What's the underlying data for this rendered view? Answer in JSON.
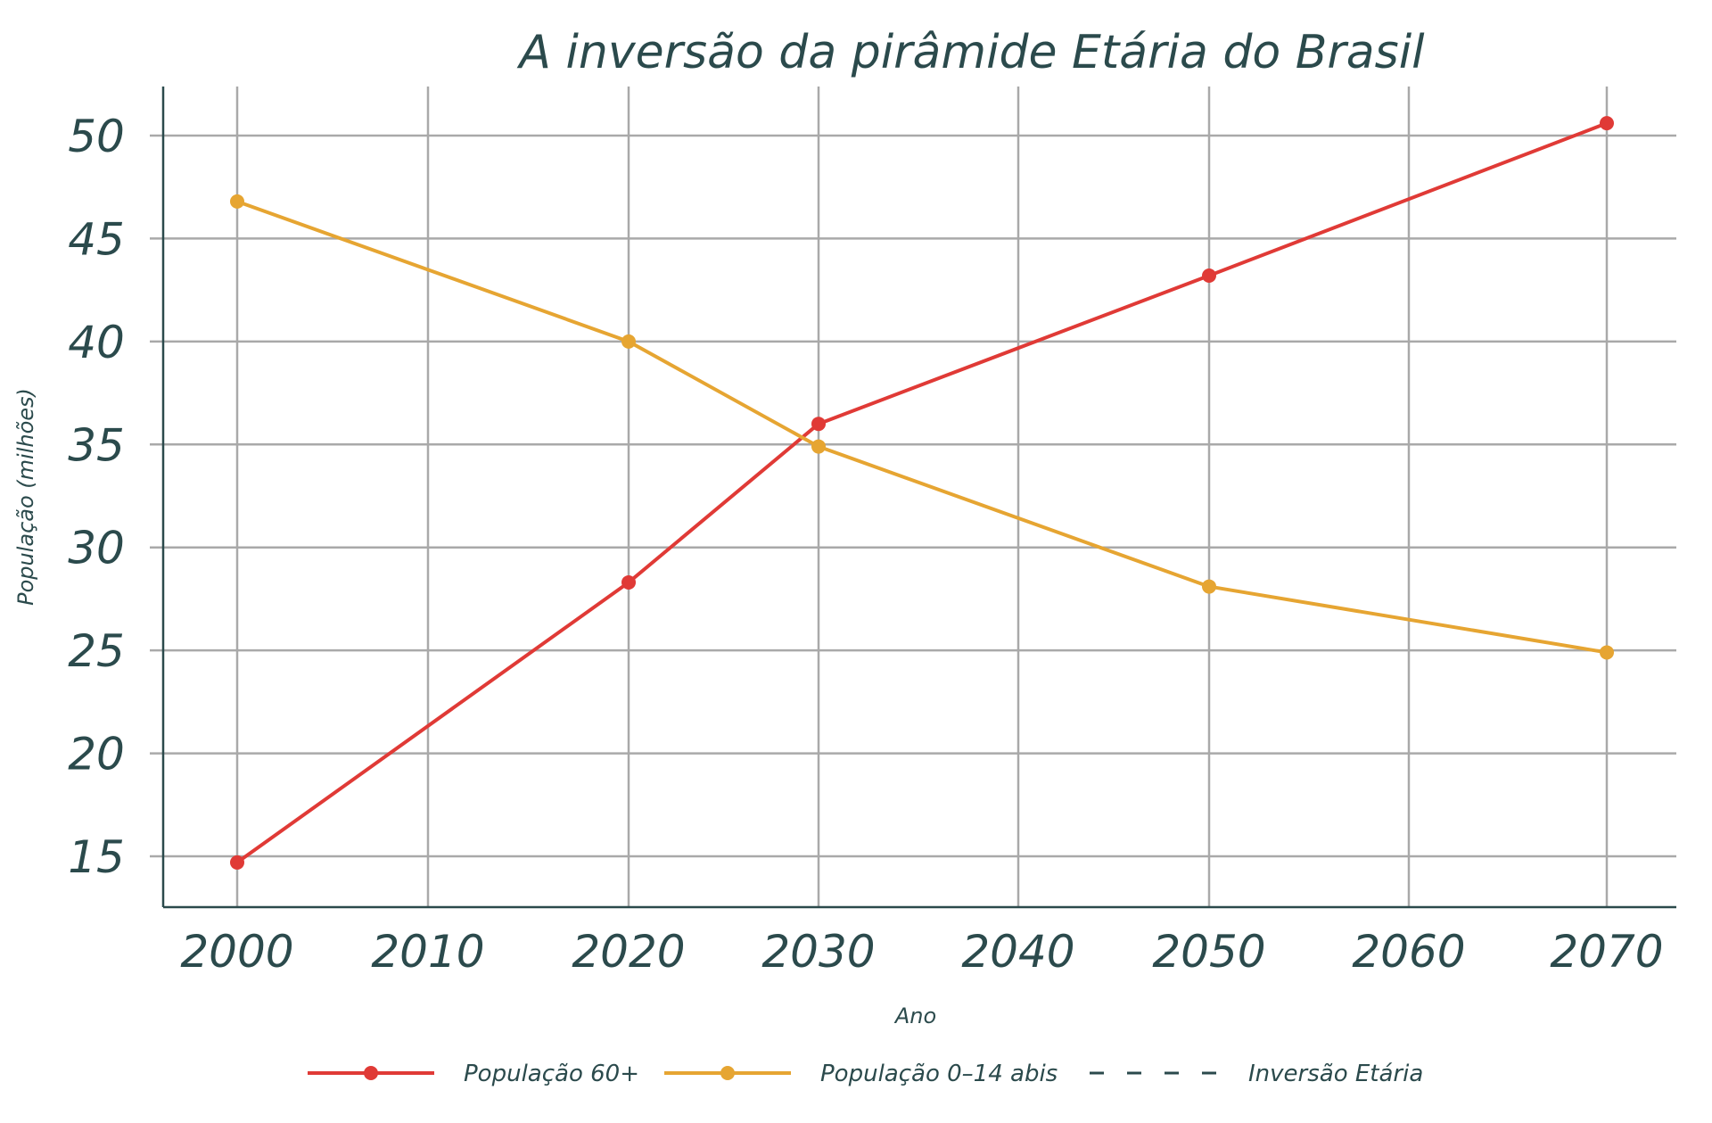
{
  "chart_data": {
    "type": "line",
    "title": "A inversão da pirâmide Etária do Brasil",
    "xlabel": "Ano",
    "ylabel": "População (milhões)",
    "x_ticks": [
      "2000",
      "2010",
      "2020",
      "2030",
      "2040",
      "2050",
      "2060",
      "2070"
    ],
    "x_tick_values": [
      2000,
      2010,
      2020,
      2030,
      2040,
      2050,
      2060,
      2070
    ],
    "y_ticks": [
      "15",
      "20",
      "25",
      "30",
      "35",
      "40",
      "45",
      "50"
    ],
    "y_tick_values": [
      15,
      20,
      25,
      30,
      35,
      40,
      45,
      50
    ],
    "ylim": [
      12.5,
      52.4
    ],
    "grid": true,
    "legend_position": "bottom",
    "series": [
      {
        "name": "População 60+",
        "color": "#e03a36",
        "marker": "circle",
        "line_style": "solid",
        "x": [
          2000,
          2020,
          2030,
          2050,
          2070
        ],
        "y": [
          14.7,
          28.3,
          36.0,
          43.2,
          50.6
        ]
      },
      {
        "name": "População 0–14 abis",
        "color": "#e6a532",
        "marker": "circle",
        "line_style": "solid",
        "x": [
          2000,
          2020,
          2030,
          2050,
          2070
        ],
        "y": [
          46.8,
          40.0,
          34.9,
          28.1,
          24.9
        ]
      },
      {
        "name": "Inversão Etária",
        "color": "#2b4a4c",
        "marker": "none",
        "line_style": "dashed",
        "x": [],
        "y": []
      }
    ]
  }
}
